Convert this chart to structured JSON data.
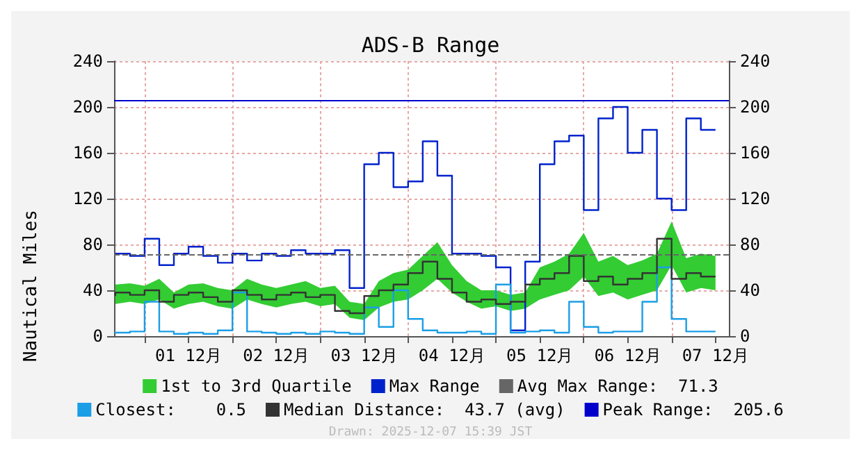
{
  "chart_data": {
    "type": "step",
    "title": "ADS-B Range",
    "ylabel": "Nautical Miles",
    "x": [
      "2025-11-30T16:00",
      "2025-11-30T20:00",
      "2025-12-01T00:00",
      "2025-12-01T04:00",
      "2025-12-01T08:00",
      "2025-12-01T12:00",
      "2025-12-01T16:00",
      "2025-12-01T20:00",
      "2025-12-02T00:00",
      "2025-12-02T04:00",
      "2025-12-02T08:00",
      "2025-12-02T12:00",
      "2025-12-02T16:00",
      "2025-12-02T20:00",
      "2025-12-03T00:00",
      "2025-12-03T04:00",
      "2025-12-03T08:00",
      "2025-12-03T12:00",
      "2025-12-03T16:00",
      "2025-12-03T20:00",
      "2025-12-04T00:00",
      "2025-12-04T04:00",
      "2025-12-04T08:00",
      "2025-12-04T12:00",
      "2025-12-04T16:00",
      "2025-12-04T20:00",
      "2025-12-05T00:00",
      "2025-12-05T04:00",
      "2025-12-05T08:00",
      "2025-12-05T12:00",
      "2025-12-05T16:00",
      "2025-12-05T20:00",
      "2025-12-06T00:00",
      "2025-12-06T04:00",
      "2025-12-06T08:00",
      "2025-12-06T12:00",
      "2025-12-06T16:00",
      "2025-12-06T20:00",
      "2025-12-07T00:00",
      "2025-12-07T04:00",
      "2025-12-07T08:00",
      "2025-12-07T12:00"
    ],
    "series": [
      {
        "name": "1st to 3rd Quartile",
        "type": "line",
        "color": "#33cc33",
        "values": [
          null,
          null,
          null,
          null,
          null,
          null,
          null,
          null,
          null,
          null,
          null,
          null,
          null,
          null,
          null,
          null,
          null,
          null,
          null,
          null,
          null,
          null,
          null,
          null,
          null,
          null,
          null,
          null,
          null,
          null,
          null,
          null,
          null,
          null,
          null,
          null,
          null,
          null,
          null,
          null,
          null,
          null
        ],
        "lower": [
          28,
          30,
          28,
          32,
          24,
          28,
          30,
          26,
          24,
          32,
          28,
          25,
          28,
          30,
          26,
          28,
          16,
          14,
          25,
          30,
          32,
          40,
          50,
          38,
          30,
          24,
          26,
          22,
          24,
          32,
          36,
          40,
          52,
          35,
          38,
          32,
          36,
          40,
          62,
          38,
          42,
          40
        ],
        "upper": [
          45,
          46,
          44,
          50,
          38,
          45,
          46,
          42,
          40,
          50,
          45,
          42,
          45,
          48,
          42,
          44,
          30,
          28,
          48,
          55,
          58,
          70,
          82,
          62,
          48,
          40,
          40,
          36,
          38,
          60,
          65,
          72,
          90,
          65,
          70,
          62,
          66,
          72,
          100,
          68,
          72,
          70
        ]
      },
      {
        "name": "Max Range",
        "color": "#0022cc",
        "values": [
          72,
          72,
          70,
          85,
          62,
          72,
          78,
          70,
          64,
          72,
          66,
          72,
          70,
          75,
          72,
          72,
          75,
          42,
          150,
          160,
          130,
          135,
          170,
          140,
          72,
          72,
          70,
          60,
          5,
          65,
          150,
          170,
          175,
          110,
          190,
          200,
          160,
          180,
          120,
          110,
          190,
          180
        ]
      },
      {
        "name": "Closest:    0.5",
        "color": "#1a9ee6",
        "values": [
          2,
          3,
          4,
          30,
          4,
          2,
          3,
          2,
          5,
          38,
          4,
          3,
          2,
          3,
          2,
          4,
          3,
          2,
          25,
          8,
          40,
          15,
          5,
          3,
          3,
          4,
          2,
          45,
          3,
          4,
          5,
          3,
          30,
          8,
          3,
          4,
          4,
          30,
          60,
          15,
          4,
          4
        ]
      },
      {
        "name": "Median Distance:  43.7 (avg)",
        "color": "#333333",
        "values": [
          35,
          38,
          36,
          40,
          30,
          36,
          38,
          34,
          30,
          40,
          36,
          32,
          36,
          38,
          34,
          36,
          22,
          20,
          35,
          40,
          45,
          55,
          65,
          50,
          38,
          30,
          32,
          28,
          30,
          45,
          50,
          55,
          70,
          48,
          52,
          45,
          50,
          55,
          85,
          50,
          55,
          52
        ]
      }
    ],
    "ref_lines": [
      {
        "axis": "y",
        "value": 71.3,
        "label": "Avg Max Range:  71.3",
        "color": "#666666",
        "line_style": "dashed"
      },
      {
        "axis": "y",
        "value": 205.6,
        "label": "Peak Range:  205.6",
        "color": "#0000cc",
        "line_style": "solid"
      }
    ],
    "xlim": [
      "2025-11-30T15:39",
      "2025-12-07T15:39"
    ],
    "xticks": [
      {
        "value": "2025-12-01T00:00",
        "label": null
      },
      {
        "value": "2025-12-01T12:00",
        "label": "01 12月"
      },
      {
        "value": "2025-12-02T00:00",
        "label": null
      },
      {
        "value": "2025-12-02T12:00",
        "label": "02 12月"
      },
      {
        "value": "2025-12-03T00:00",
        "label": null
      },
      {
        "value": "2025-12-03T12:00",
        "label": "03 12月"
      },
      {
        "value": "2025-12-04T00:00",
        "label": null
      },
      {
        "value": "2025-12-04T12:00",
        "label": "04 12月"
      },
      {
        "value": "2025-12-05T00:00",
        "label": null
      },
      {
        "value": "2025-12-05T12:00",
        "label": "05 12月"
      },
      {
        "value": "2025-12-06T00:00",
        "label": null
      },
      {
        "value": "2025-12-06T12:00",
        "label": "06 12月"
      },
      {
        "value": "2025-12-07T00:00",
        "label": null
      },
      {
        "value": "2025-12-07T12:00",
        "label": "07 12月"
      }
    ],
    "ylim": [
      0,
      240
    ],
    "yticks": [
      0,
      40,
      80,
      120,
      160,
      200,
      240
    ],
    "y2lim": [
      0,
      240
    ],
    "y2ticks": [
      0,
      40,
      80,
      120,
      160,
      200,
      240
    ],
    "grid": true,
    "legend": "bottom",
    "annotations": [
      "Drawn: 2025-12-07 15:39 JST"
    ]
  }
}
